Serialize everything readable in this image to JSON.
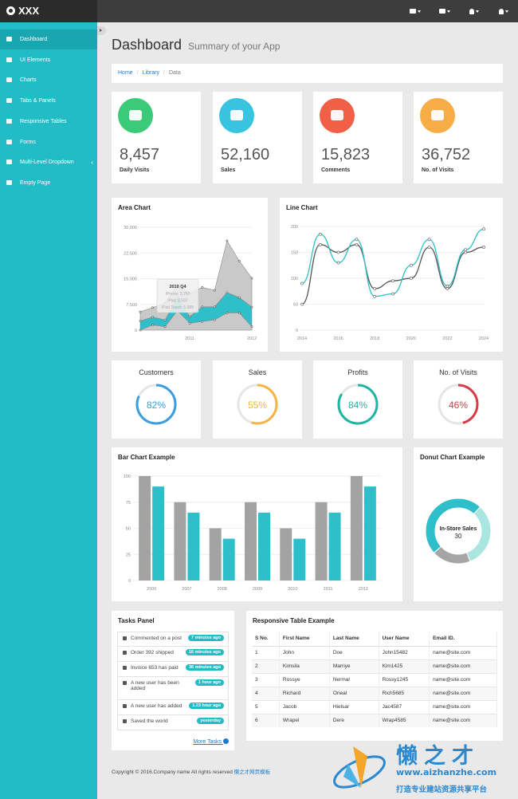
{
  "brand": "XXX",
  "top_icons": [
    "envelope-icon",
    "tasks-icon",
    "bell-icon",
    "user-icon"
  ],
  "sidebar": {
    "items": [
      {
        "label": "Dashboard",
        "icon": "dashboard-icon",
        "active": true
      },
      {
        "label": "UI Elements",
        "icon": "desktop-icon"
      },
      {
        "label": "Charts",
        "icon": "chart-icon"
      },
      {
        "label": "Tabs & Panels",
        "icon": "qrcode-icon"
      },
      {
        "label": "Responsive Tables",
        "icon": "table-icon"
      },
      {
        "label": "Forms",
        "icon": "edit-icon"
      },
      {
        "label": "Multi-Level Dropdown",
        "icon": "sitemap-icon",
        "chevron": "‹"
      },
      {
        "label": "Empty Page",
        "icon": "file-icon"
      }
    ]
  },
  "page": {
    "title": "Dashboard",
    "subtitle": "Summary of your App"
  },
  "breadcrumb": {
    "home": "Home",
    "library": "Library",
    "current": "Data",
    "sep": "/"
  },
  "stats": [
    {
      "value": "8,457",
      "label": "Daily Visits",
      "color": "#3bca77",
      "icon": "eye-icon"
    },
    {
      "value": "52,160",
      "label": "Sales",
      "color": "#38c4e0",
      "icon": "shopping-cart-icon"
    },
    {
      "value": "15,823",
      "label": "Comments",
      "color": "#f15f47",
      "icon": "comments-icon"
    },
    {
      "value": "36,752",
      "label": "No. of Visits",
      "color": "#f6ad45",
      "icon": "users-icon"
    }
  ],
  "area_chart": {
    "title": "Area Chart",
    "chart_data": {
      "type": "area",
      "y_ticks": [
        "0",
        "7,500",
        "15,000",
        "22,500",
        "30,000"
      ],
      "ylim": [
        0,
        30000
      ],
      "x_tick_labels": [
        "2011",
        "2012"
      ],
      "x_tick_positions": [
        4,
        9
      ],
      "series": [
        {
          "name": "iPhone",
          "color": "#c9c9c9",
          "values": [
            2666,
            2778,
            4912,
            3767,
            6810,
            5670,
            4820,
            15073,
            10687,
            8432
          ]
        },
        {
          "name": "iPad",
          "color": "#2fbfca",
          "values": [
            2666,
            2294,
            1969,
            3597,
            1914,
            4293,
            3795,
            5967,
            4460,
            5713
          ]
        },
        {
          "name": "iPod Touch",
          "color": "#c9c9c9",
          "values": [
            0,
            1500,
            1000,
            5689,
            2000,
            2500,
            3000,
            5000,
            5000,
            1000
          ]
        }
      ],
      "tooltip": {
        "title": "2010 Q4",
        "lines": [
          "iPhone: 3,767",
          "iPad: 3,597",
          "iPod Touch: 5,689"
        ]
      }
    }
  },
  "line_chart": {
    "title": "Line Chart",
    "chart_data": {
      "type": "line",
      "x": [
        2014,
        2015,
        2016,
        2017,
        2018,
        2019,
        2020,
        2021,
        2022,
        2023,
        2024
      ],
      "x_tick_labels": [
        "2014",
        "2016",
        "2018",
        "2020",
        "2022",
        "2024"
      ],
      "y_ticks": [
        "0",
        "50",
        "100",
        "150",
        "200"
      ],
      "ylim": [
        0,
        200
      ],
      "series": [
        {
          "color": "#555555",
          "values": [
            50,
            165,
            150,
            165,
            80,
            95,
            100,
            160,
            80,
            150,
            160
          ]
        },
        {
          "color": "#2fbfca",
          "values": [
            90,
            185,
            130,
            175,
            65,
            70,
            125,
            175,
            85,
            155,
            195
          ]
        }
      ]
    }
  },
  "progress": [
    {
      "title": "Customers",
      "value": "82%",
      "percent": 82,
      "color": "#3a9de0"
    },
    {
      "title": "Sales",
      "value": "55%",
      "percent": 55,
      "color": "#f6b445"
    },
    {
      "title": "Profits",
      "value": "84%",
      "percent": 84,
      "color": "#1fb5a4"
    },
    {
      "title": "No. of Visits",
      "value": "46%",
      "percent": 46,
      "color": "#d83a48"
    }
  ],
  "bar_chart": {
    "title": "Bar Chart Example",
    "chart_data": {
      "type": "bar",
      "categories": [
        "2006",
        "2007",
        "2008",
        "2009",
        "2010",
        "2011",
        "2012"
      ],
      "y_ticks": [
        "0",
        "25",
        "50",
        "75",
        "100"
      ],
      "ylim": [
        0,
        100
      ],
      "series": [
        {
          "color": "#a3a3a3",
          "values": [
            100,
            75,
            50,
            75,
            50,
            75,
            100
          ]
        },
        {
          "color": "#2fbfca",
          "values": [
            90,
            65,
            40,
            65,
            40,
            65,
            90
          ]
        }
      ]
    }
  },
  "donut_chart": {
    "title": "Donut Chart Example",
    "center_label": "In-Store Sales",
    "center_value": "30",
    "chart_data": {
      "type": "pie",
      "values": [
        12,
        30,
        20
      ],
      "colors": [
        "#a5a5a5",
        "#2fbfca",
        "#a9e6df"
      ]
    }
  },
  "tasks": {
    "title": "Tasks Panel",
    "items": [
      {
        "text": "Commented on a post",
        "time": "7 minutes ago",
        "icon": "comment-icon"
      },
      {
        "text": "Order 392 shipped",
        "time": "16 minutes ago",
        "icon": "truck-icon"
      },
      {
        "text": "Invoice 653 has paid",
        "time": "36 minutes ago",
        "icon": "money-icon"
      },
      {
        "text": "A new user has been added",
        "time": "1 hour ago",
        "icon": "user-icon"
      },
      {
        "text": "A new user has added",
        "time": "1.23 hour ago",
        "icon": "user-icon"
      },
      {
        "text": "Saved the world",
        "time": "yesterday",
        "icon": "globe-icon"
      }
    ],
    "more": "More Tasks"
  },
  "table": {
    "title": "Responsive Table Example",
    "headers": [
      "S No.",
      "First Name",
      "Last Name",
      "User Name",
      "Email ID."
    ],
    "rows": [
      [
        "1",
        "John",
        "Doe",
        "John15482",
        "name@site.com"
      ],
      [
        "2",
        "Kimsila",
        "Marriye",
        "Kim1425",
        "name@site.com"
      ],
      [
        "3",
        "Rossye",
        "Nermal",
        "Rossy1245",
        "name@site.com"
      ],
      [
        "4",
        "Richard",
        "Orieal",
        "Rich5685",
        "name@site.com"
      ],
      [
        "5",
        "Jacob",
        "Hielsar",
        "Jac4587",
        "name@site.com"
      ],
      [
        "6",
        "Wrapel",
        "Dere",
        "Wrap4585",
        "name@site.com"
      ]
    ]
  },
  "footer": {
    "text": "Copyright © 2016.Company name All rights reserved",
    "link": "懒之才网页模板"
  },
  "watermark": {
    "title": "懒之才",
    "url": "www.aizhanzhe.com",
    "sub": "打造专业建站资源共享平台"
  }
}
